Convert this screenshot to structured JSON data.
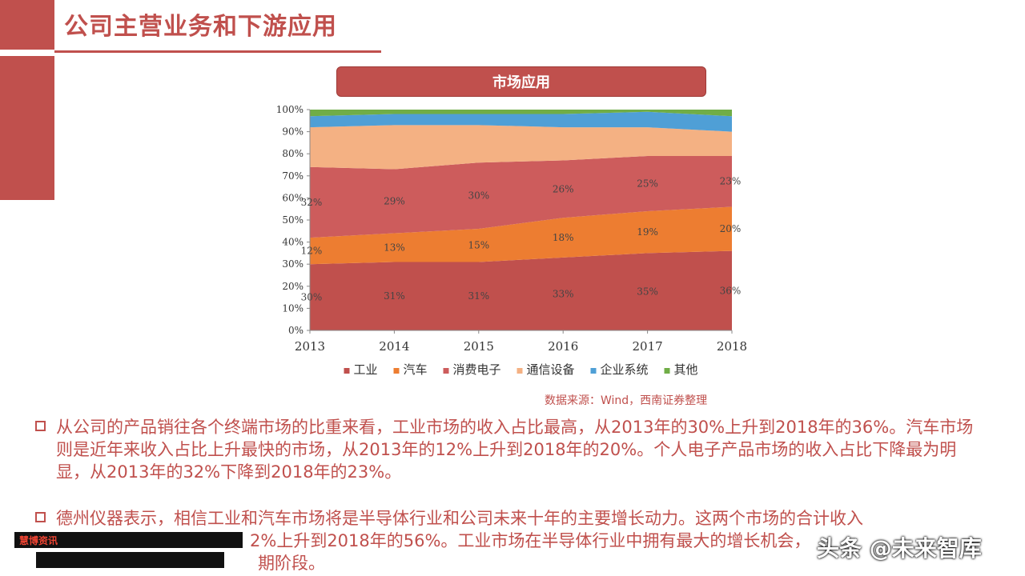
{
  "page": {
    "title": "公司主营业务和下游应用",
    "chart_header": "市场应用",
    "source": "数据来源：Wind，西南证券整理",
    "paragraph1": "从公司的产品销往各个终端市场的比重来看，工业市场的收入占比最高，从2013年的30%上升到2018年的36%。汽车市场则是近年来收入占比上升最快的市场，从2013年的12%上升到2018年的20%。个人电子产品市场的收入占比下降最为明显，从2013年的32%下降到2018年的23%。",
    "paragraph2": "德州仪器表示，相信工业和汽车市场将是半导体行业和公司未来十年的主要增长动力。这两个市场的合计收入",
    "paragraph2_line2": "2%上升到2018年的56%。工业市场在半导体行业中拥有最大的增长机会，",
    "paragraph2_line3": "期阶段。",
    "footer_logo_text": "慧博资讯",
    "watermark": "头条 @未来智库"
  },
  "colors": {
    "工业": "#c0504d",
    "汽车": "#ed7d31",
    "消费电子": "#cd5c5c",
    "通信设备": "#f4b183",
    "企业系统": "#4f9fd6",
    "其他": "#70ad47"
  },
  "chart_data": {
    "type": "area",
    "stacked": true,
    "categories": [
      "2013",
      "2014",
      "2015",
      "2016",
      "2017",
      "2018"
    ],
    "ylim": [
      0,
      100
    ],
    "yticks": [
      "0%",
      "10%",
      "20%",
      "30%",
      "40%",
      "50%",
      "60%",
      "70%",
      "80%",
      "90%",
      "100%"
    ],
    "series": [
      {
        "name": "工业",
        "values": [
          30,
          31,
          31,
          33,
          35,
          36
        ],
        "labels": [
          "30%",
          "31%",
          "31%",
          "33%",
          "35%",
          "36%"
        ]
      },
      {
        "name": "汽车",
        "values": [
          12,
          13,
          15,
          18,
          19,
          20
        ],
        "labels": [
          "12%",
          "13%",
          "15%",
          "18%",
          "19%",
          "20%"
        ]
      },
      {
        "name": "消费电子",
        "values": [
          32,
          29,
          30,
          26,
          25,
          23
        ],
        "labels": [
          "32%",
          "29%",
          "30%",
          "26%",
          "25%",
          "23%"
        ]
      },
      {
        "name": "通信设备",
        "values": [
          18,
          20,
          17,
          15,
          13,
          11
        ]
      },
      {
        "name": "企业系统",
        "values": [
          5,
          5,
          5,
          6,
          7,
          7
        ]
      },
      {
        "name": "其他",
        "values": [
          3,
          2,
          2,
          2,
          1,
          3
        ]
      }
    ],
    "legend_position": "bottom"
  }
}
